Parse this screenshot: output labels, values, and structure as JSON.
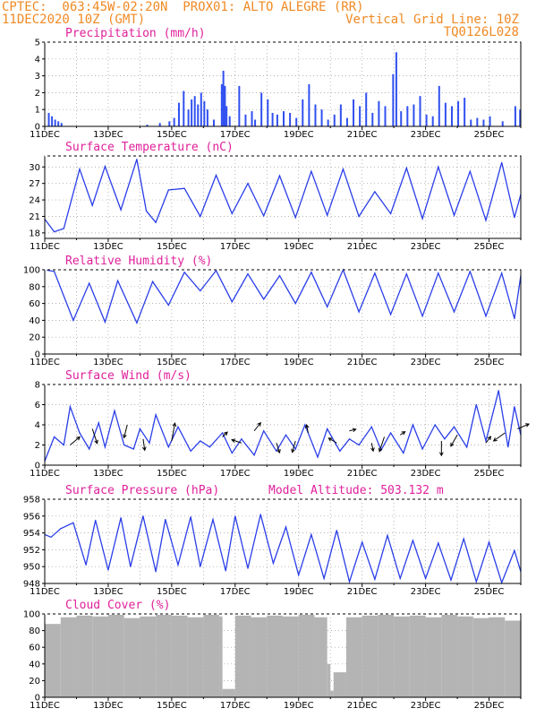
{
  "header": {
    "line1": "CPTEC:  063:45W-02:20N  PROX01: ALTO ALEGRE (RR)",
    "line2_left": "11DEC2020 10Z (GMT)",
    "line2_right": "Vertical Grid Line: 10Z",
    "line3_right": "TQ0126L028"
  },
  "x_ticks": [
    "11DEC",
    "13DEC",
    "15DEC",
    "17DEC",
    "19DEC",
    "21DEC",
    "23DEC",
    "25DEC"
  ],
  "colors": {
    "header": "#f08a24",
    "title": "#e0209a",
    "series": "#2a3ee8",
    "bar": "#3050f0",
    "cloud": "#b4b4b4"
  },
  "chart_data": [
    {
      "type": "bar",
      "title": "Precipitation (mm/h)",
      "ylim": [
        0,
        5
      ],
      "yticks": [
        0,
        1,
        2,
        3,
        4,
        5
      ],
      "x_range_days": [
        0,
        15
      ],
      "x": [
        0.1,
        0.2,
        0.3,
        0.4,
        0.5,
        3.2,
        3.6,
        3.9,
        4.05,
        4.2,
        4.35,
        4.5,
        4.6,
        4.7,
        4.8,
        4.9,
        5.0,
        5.1,
        5.3,
        5.55,
        5.6,
        5.65,
        5.7,
        5.8,
        6.1,
        6.3,
        6.5,
        6.6,
        6.8,
        7.0,
        7.15,
        7.3,
        7.5,
        7.7,
        7.9,
        8.1,
        8.3,
        8.5,
        8.7,
        8.9,
        9.1,
        9.3,
        9.5,
        9.7,
        9.9,
        10.1,
        10.3,
        10.5,
        10.7,
        10.95,
        11.05,
        11.2,
        11.4,
        11.6,
        11.8,
        12.0,
        12.2,
        12.4,
        12.6,
        12.8,
        13.0,
        13.2,
        13.4,
        13.6,
        13.8,
        14.0,
        14.4,
        14.8,
        14.95
      ],
      "values": [
        0.8,
        0.6,
        0.4,
        0.3,
        0.2,
        0.1,
        0.2,
        0.3,
        0.5,
        1.4,
        2.1,
        1.0,
        1.6,
        1.8,
        1.3,
        2.0,
        1.5,
        1.0,
        0.4,
        2.5,
        3.3,
        2.4,
        1.2,
        0.6,
        2.4,
        0.7,
        0.9,
        0.4,
        2.0,
        1.6,
        0.8,
        0.7,
        0.9,
        0.8,
        0.5,
        1.6,
        2.5,
        1.3,
        1.0,
        0.4,
        0.7,
        1.3,
        0.5,
        1.6,
        1.2,
        2.0,
        0.8,
        1.5,
        1.2,
        3.1,
        4.4,
        0.9,
        1.2,
        1.3,
        1.8,
        0.7,
        0.6,
        2.4,
        1.4,
        1.2,
        1.5,
        1.7,
        0.4,
        0.5,
        0.4,
        0.6,
        0.3,
        1.2,
        1.0
      ]
    },
    {
      "type": "line",
      "title": "Surface Temperature (nC)",
      "ylim": [
        17,
        32
      ],
      "yticks": [
        18,
        21,
        24,
        27,
        30
      ],
      "x": [
        0,
        0.3,
        0.6,
        1.1,
        1.5,
        1.9,
        2.4,
        2.9,
        3.2,
        3.5,
        3.9,
        4.4,
        4.9,
        5.4,
        5.9,
        6.4,
        6.9,
        7.4,
        7.9,
        8.4,
        8.9,
        9.4,
        9.9,
        10.4,
        10.9,
        11.4,
        11.9,
        12.4,
        12.9,
        13.4,
        13.9,
        14.4,
        14.8,
        15
      ],
      "values": [
        20.5,
        18.2,
        18.8,
        29.6,
        23.0,
        30.1,
        22.2,
        31.4,
        22.0,
        19.9,
        25.8,
        26.1,
        21.0,
        28.5,
        21.5,
        27.0,
        21.1,
        28.4,
        20.8,
        29.2,
        21.2,
        29.6,
        21.0,
        25.5,
        21.5,
        29.8,
        20.6,
        30.0,
        21.2,
        29.2,
        20.3,
        30.8,
        20.8,
        25.0
      ]
    },
    {
      "type": "line",
      "title": "Relative Humidity (%)",
      "ylim": [
        0,
        100
      ],
      "yticks": [
        0,
        20,
        40,
        60,
        80,
        100
      ],
      "x": [
        0,
        0.3,
        0.9,
        1.4,
        1.9,
        2.3,
        2.9,
        3.4,
        3.9,
        4.4,
        4.9,
        5.4,
        5.9,
        6.4,
        6.9,
        7.4,
        7.9,
        8.4,
        8.9,
        9.4,
        9.9,
        10.4,
        10.9,
        11.4,
        11.9,
        12.4,
        12.9,
        13.4,
        13.9,
        14.4,
        14.8,
        15
      ],
      "values": [
        100,
        98,
        40,
        84,
        38,
        87,
        37,
        86,
        58,
        97,
        75,
        99,
        62,
        95,
        65,
        93,
        60,
        97,
        56,
        100,
        50,
        96,
        47,
        95,
        45,
        96,
        50,
        98,
        45,
        96,
        42,
        93
      ]
    },
    {
      "type": "line",
      "title": "Surface Wind (m/s)",
      "ylim": [
        0,
        8
      ],
      "yticks": [
        0,
        2,
        4,
        6,
        8
      ],
      "x": [
        0,
        0.3,
        0.6,
        0.8,
        1.1,
        1.4,
        1.7,
        1.9,
        2.2,
        2.5,
        2.8,
        3.0,
        3.3,
        3.5,
        3.9,
        4.2,
        4.6,
        4.9,
        5.2,
        5.6,
        5.9,
        6.2,
        6.6,
        6.9,
        7.3,
        7.6,
        7.9,
        8.2,
        8.6,
        8.9,
        9.3,
        9.6,
        9.9,
        10.3,
        10.6,
        10.9,
        11.3,
        11.6,
        11.9,
        12.3,
        12.6,
        12.9,
        13.3,
        13.6,
        13.9,
        14.3,
        14.6,
        14.8,
        15
      ],
      "values": [
        0.4,
        2.8,
        2.0,
        5.8,
        3.2,
        1.6,
        4.2,
        1.8,
        5.4,
        2.0,
        1.6,
        3.6,
        2.2,
        5.0,
        1.8,
        3.8,
        1.4,
        2.4,
        1.8,
        3.2,
        1.2,
        2.6,
        1.0,
        3.4,
        1.4,
        3.0,
        1.6,
        4.0,
        0.8,
        3.6,
        1.4,
        2.6,
        2.0,
        3.8,
        1.5,
        3.2,
        1.2,
        4.0,
        1.6,
        4.0,
        2.6,
        3.8,
        1.8,
        6.0,
        2.4,
        7.4,
        1.8,
        5.8,
        3.0
      ],
      "arrows": [
        {
          "x": 0.8,
          "y": 2.0,
          "u": 1.2,
          "v": 1.0
        },
        {
          "x": 1.5,
          "y": 3.6,
          "u": 0.6,
          "v": -1.8
        },
        {
          "x": 2.6,
          "y": 4.0,
          "u": -0.4,
          "v": -1.6
        },
        {
          "x": 3.1,
          "y": 2.6,
          "u": 0.2,
          "v": -1.4
        },
        {
          "x": 4.0,
          "y": 2.4,
          "u": 0.4,
          "v": 2.2
        },
        {
          "x": 5.6,
          "y": 2.8,
          "u": 0.6,
          "v": 0.6
        },
        {
          "x": 6.2,
          "y": 2.2,
          "u": -1.2,
          "v": 0.4
        },
        {
          "x": 6.6,
          "y": 3.4,
          "u": 0.8,
          "v": 1.0
        },
        {
          "x": 7.3,
          "y": 2.2,
          "u": 0.4,
          "v": -1.2
        },
        {
          "x": 7.9,
          "y": 2.4,
          "u": -0.4,
          "v": -1.4
        },
        {
          "x": 8.3,
          "y": 3.2,
          "u": -0.2,
          "v": 1.0
        },
        {
          "x": 9.2,
          "y": 2.2,
          "u": -1.0,
          "v": 0.6
        },
        {
          "x": 9.6,
          "y": 3.4,
          "u": 0.8,
          "v": 0.2
        },
        {
          "x": 10.3,
          "y": 2.2,
          "u": 0.2,
          "v": -1.0
        },
        {
          "x": 10.7,
          "y": 2.8,
          "u": -0.6,
          "v": -1.8
        },
        {
          "x": 11.2,
          "y": 3.0,
          "u": 0.6,
          "v": 0.4
        },
        {
          "x": 12.5,
          "y": 2.4,
          "u": 0.0,
          "v": -1.8
        },
        {
          "x": 13.0,
          "y": 3.0,
          "u": -0.8,
          "v": -1.4
        },
        {
          "x": 13.9,
          "y": 2.2,
          "u": 0.6,
          "v": 0.8
        },
        {
          "x": 14.5,
          "y": 3.2,
          "u": -1.4,
          "v": -1.0
        },
        {
          "x": 14.9,
          "y": 3.6,
          "u": 1.4,
          "v": 0.6
        }
      ]
    },
    {
      "type": "line",
      "title": "Surface Pressure (hPa)",
      "annotation": "Model Altitude: 503.132 m",
      "ylim": [
        948,
        958
      ],
      "yticks": [
        948,
        950,
        952,
        954,
        956,
        958
      ],
      "x": [
        0,
        0.2,
        0.5,
        0.9,
        1.3,
        1.6,
        2.0,
        2.4,
        2.7,
        3.1,
        3.5,
        3.8,
        4.2,
        4.6,
        4.9,
        5.3,
        5.7,
        6.0,
        6.4,
        6.8,
        7.2,
        7.6,
        8.0,
        8.4,
        8.8,
        9.2,
        9.6,
        10.0,
        10.4,
        10.8,
        11.2,
        11.6,
        12.0,
        12.4,
        12.8,
        13.2,
        13.6,
        14.0,
        14.4,
        14.8,
        15
      ],
      "values": [
        953.8,
        953.5,
        954.5,
        955.2,
        950.2,
        955.5,
        949.6,
        955.8,
        950.0,
        956.0,
        949.4,
        955.6,
        950.2,
        955.9,
        950.0,
        955.6,
        949.5,
        956.0,
        949.8,
        956.2,
        950.4,
        954.7,
        949.0,
        953.8,
        948.6,
        954.3,
        948.2,
        952.9,
        948.5,
        953.7,
        948.6,
        953.1,
        948.6,
        952.8,
        948.4,
        953.3,
        948.2,
        952.9,
        948.1,
        951.9,
        949.4
      ]
    },
    {
      "type": "bar",
      "title": "Cloud Cover (%)",
      "ylim": [
        0,
        100
      ],
      "yticks": [
        0,
        20,
        40,
        60,
        80,
        100
      ],
      "x_range_days": [
        0,
        15
      ],
      "x": [
        0,
        0.5,
        1.0,
        1.5,
        2.0,
        2.5,
        3.0,
        3.5,
        4.0,
        4.5,
        5.0,
        5.5,
        5.6,
        6.0,
        6.5,
        7.0,
        7.5,
        8.0,
        8.5,
        8.9,
        9.0,
        9.1,
        9.5,
        10.0,
        10.5,
        11.0,
        11.5,
        12.0,
        12.5,
        13.0,
        13.5,
        14.0,
        14.5
      ],
      "values": [
        88,
        96,
        98,
        97,
        99,
        95,
        97,
        99,
        98,
        96,
        99,
        97,
        10,
        98,
        96,
        98,
        97,
        99,
        96,
        40,
        8,
        30,
        96,
        98,
        99,
        97,
        98,
        96,
        99,
        97,
        95,
        96,
        92
      ]
    }
  ]
}
